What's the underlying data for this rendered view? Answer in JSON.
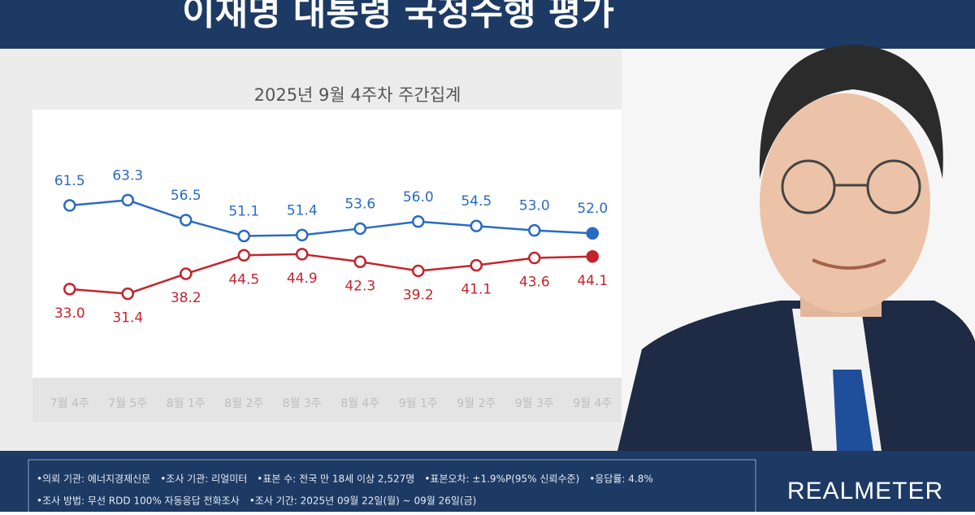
{
  "chart_data": {
    "type": "line",
    "title": "이재명 대통령 국정수행 평가",
    "subtitle": "2025년 9월 4주차 주간집계",
    "categories": [
      "7월 4주",
      "7월 5주",
      "8월 1주",
      "8월 2주",
      "8월 3주",
      "8월 4주",
      "9월 1주",
      "9월 2주",
      "9월 3주",
      "9월 4주"
    ],
    "series": [
      {
        "color": "#2a6bc2",
        "values": [
          61.5,
          63.3,
          56.5,
          51.1,
          51.4,
          53.6,
          56.0,
          54.5,
          53.0,
          52.0
        ],
        "value_labels": [
          "61.5",
          "63.3",
          "56.5",
          "51.1",
          "51.4",
          "53.6",
          "56.0",
          "54.5",
          "53.0",
          "52.0"
        ]
      },
      {
        "color": "#c3252c",
        "values": [
          33.0,
          31.4,
          38.2,
          44.5,
          44.9,
          42.3,
          39.2,
          41.1,
          43.6,
          44.1
        ],
        "value_labels": [
          "33.0",
          "31.4",
          "38.2",
          "44.5",
          "44.9",
          "42.3",
          "39.2",
          "41.1",
          "43.6",
          "44.1"
        ]
      }
    ],
    "ylim": [
      0,
      90
    ],
    "grid": false
  },
  "footer": {
    "notes": [
      [
        "•의뢰 기관: 에너지경제신문",
        "•조사 기관: 리얼미터",
        "•표본 수: 전국 만 18세 이상 2,527명",
        "•표본오차: ±1.9%P(95% 신뢰수준)",
        "•응답률: 4.8%"
      ],
      [
        "•조사 방법: 무선 RDD 100% 자동응답 전화조사",
        "•조사 기간: 2025년 09월 22일(월) ~ 09월 26일(금)"
      ]
    ],
    "brand": "REALMETER"
  }
}
